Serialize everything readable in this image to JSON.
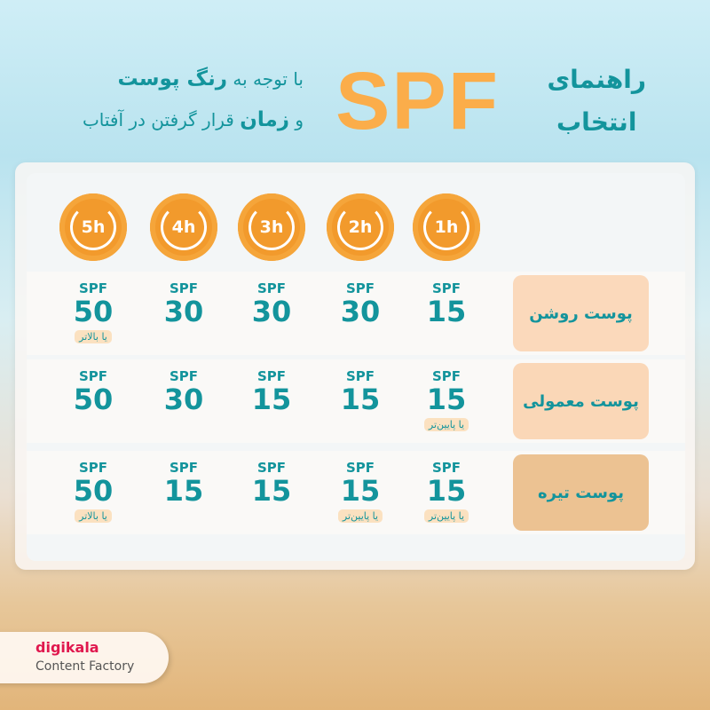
{
  "header": {
    "title_main": "SPF",
    "title_right_line1": "راهنمای",
    "title_right_line2": "انتخاب",
    "subtitle_line1_pre": "با توجه به",
    "subtitle_line1_bold": "رنگ پوست",
    "subtitle_line2_pre": "و",
    "subtitle_line2_bold": "زمان",
    "subtitle_line2_post": "قرار گرفتن در آفتاب"
  },
  "durations": [
    "1h",
    "2h",
    "3h",
    "4h",
    "5h"
  ],
  "rows": [
    {
      "label": "پوست روشن",
      "color": "#fbd9bb",
      "cells": [
        {
          "spf": "SPF",
          "value": "15",
          "note": ""
        },
        {
          "spf": "SPF",
          "value": "30",
          "note": ""
        },
        {
          "spf": "SPF",
          "value": "30",
          "note": ""
        },
        {
          "spf": "SPF",
          "value": "30",
          "note": ""
        },
        {
          "spf": "SPF",
          "value": "50",
          "note": "یا بالاتر"
        }
      ]
    },
    {
      "label": "پوست معمولی",
      "color": "#fad7b7",
      "cells": [
        {
          "spf": "SPF",
          "value": "15",
          "note": "یا پایین‌تر"
        },
        {
          "spf": "SPF",
          "value": "15",
          "note": ""
        },
        {
          "spf": "SPF",
          "value": "15",
          "note": ""
        },
        {
          "spf": "SPF",
          "value": "30",
          "note": ""
        },
        {
          "spf": "SPF",
          "value": "50",
          "note": ""
        }
      ]
    },
    {
      "label": "پوست تیره",
      "color": "#ecc292",
      "cells": [
        {
          "spf": "SPF",
          "value": "15",
          "note": "یا پایین‌تر"
        },
        {
          "spf": "SPF",
          "value": "15",
          "note": "یا پایین‌تر"
        },
        {
          "spf": "SPF",
          "value": "15",
          "note": ""
        },
        {
          "spf": "SPF",
          "value": "15",
          "note": ""
        },
        {
          "spf": "SPF",
          "value": "50",
          "note": "یا بالاتر"
        }
      ]
    }
  ],
  "brand": {
    "name": "digikala",
    "sub": "Content Factory"
  }
}
